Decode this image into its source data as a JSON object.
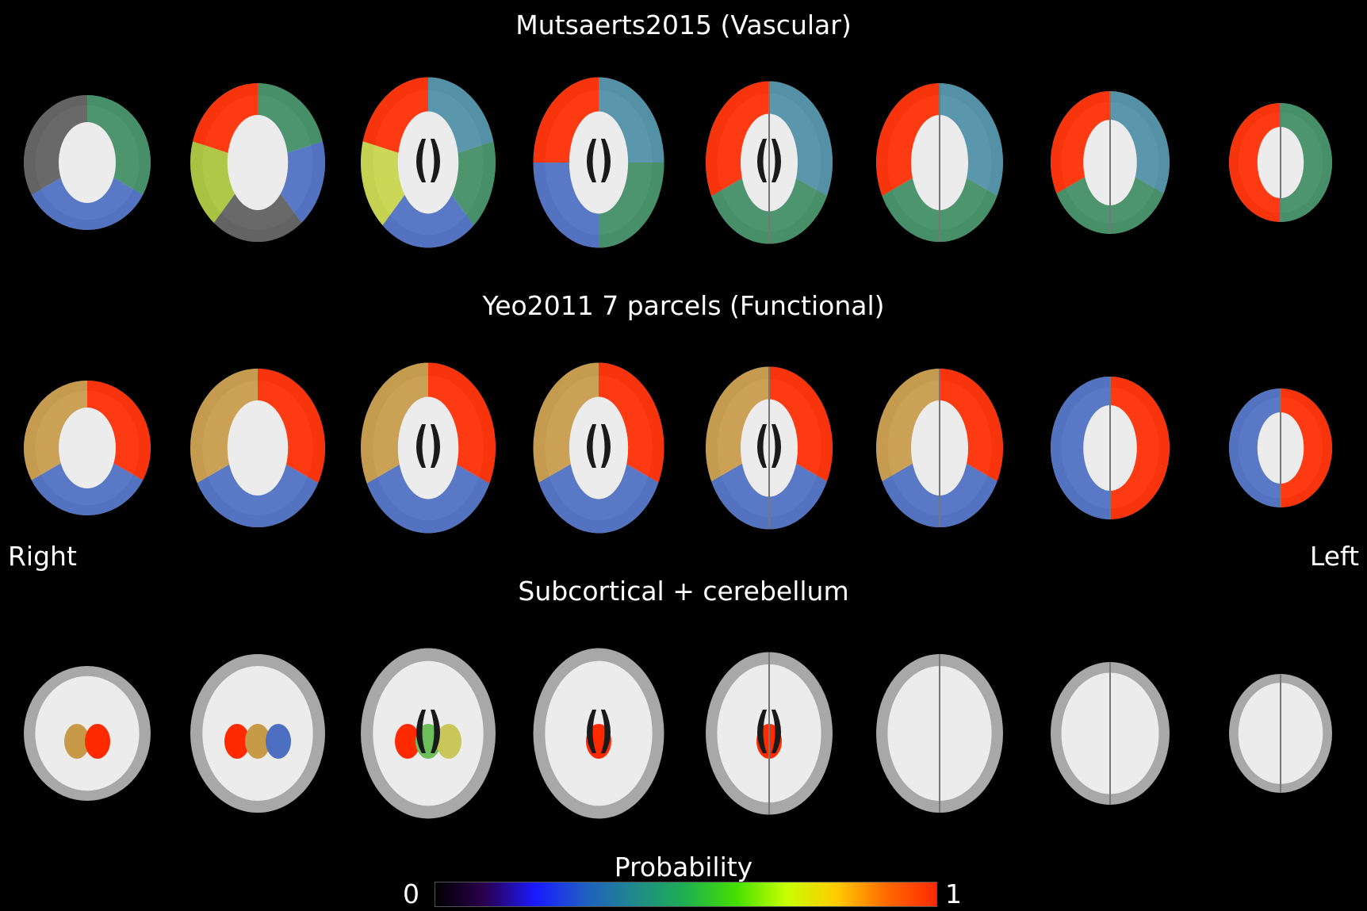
{
  "rows": [
    {
      "title": "Mutsaerts2015 (Vascular)",
      "slices": [
        {
          "label": "slice-1",
          "regions": [
            "#3e8d64",
            "#4c6fc2",
            "#5d5d5d"
          ]
        },
        {
          "label": "slice-2",
          "regions": [
            "#3e8d64",
            "#4c6fc2",
            "#5d5d5d",
            "#a9c43a",
            "#ff2a00"
          ]
        },
        {
          "label": "slice-3",
          "regions": [
            "#4d8ea6",
            "#3e8d64",
            "#4c6fc2",
            "#c8d64a",
            "#ff2a00"
          ]
        },
        {
          "label": "slice-4",
          "regions": [
            "#4d8ea6",
            "#3e8d64",
            "#4c6fc2",
            "#ff2a00"
          ]
        },
        {
          "label": "slice-5",
          "regions": [
            "#4d8ea6",
            "#3e8d64",
            "#ff2a00"
          ]
        },
        {
          "label": "slice-6",
          "regions": [
            "#4d8ea6",
            "#3e8d64",
            "#ff2a00"
          ]
        },
        {
          "label": "slice-7",
          "regions": [
            "#4d8ea6",
            "#3e8d64",
            "#ff2a00"
          ]
        },
        {
          "label": "slice-8",
          "regions": [
            "#3e8d64",
            "#ff2a00"
          ]
        }
      ]
    },
    {
      "title": "Yeo2011 7 parcels (Functional)",
      "slices": [
        {
          "label": "slice-1",
          "regions": [
            "#ff2a00",
            "#4c6fc2",
            "#c79a48"
          ]
        },
        {
          "label": "slice-2",
          "regions": [
            "#ff2a00",
            "#4c6fc2",
            "#c79a48"
          ]
        },
        {
          "label": "slice-3",
          "regions": [
            "#ff2a00",
            "#4c6fc2",
            "#c79a48"
          ]
        },
        {
          "label": "slice-4",
          "regions": [
            "#ff2a00",
            "#4c6fc2",
            "#c79a48"
          ]
        },
        {
          "label": "slice-5",
          "regions": [
            "#ff2a00",
            "#4c6fc2",
            "#c79a48"
          ]
        },
        {
          "label": "slice-6",
          "regions": [
            "#ff2a00",
            "#4c6fc2",
            "#c79a48"
          ]
        },
        {
          "label": "slice-7",
          "regions": [
            "#ff2a00",
            "#4c6fc2"
          ]
        },
        {
          "label": "slice-8",
          "regions": [
            "#ff2a00",
            "#4c6fc2"
          ]
        }
      ]
    },
    {
      "title": "Subcortical + cerebellum",
      "slices": [
        {
          "label": "slice-1",
          "regions": [
            "#c79a48",
            "#ff2a00"
          ]
        },
        {
          "label": "slice-2",
          "regions": [
            "#ff2a00",
            "#c79a48",
            "#4c6fc2"
          ]
        },
        {
          "label": "slice-3",
          "regions": [
            "#ff2a00",
            "#6cbf5a",
            "#c9c75a"
          ]
        },
        {
          "label": "slice-4",
          "regions": [
            "#ff2a00"
          ]
        },
        {
          "label": "slice-5",
          "regions": [
            "#ff2a00"
          ]
        },
        {
          "label": "slice-6",
          "regions": []
        },
        {
          "label": "slice-7",
          "regions": []
        },
        {
          "label": "slice-8",
          "regions": []
        }
      ]
    }
  ],
  "orientation": {
    "right_label": "Right",
    "left_label": "Left"
  },
  "colorbar": {
    "label": "Probability",
    "min_label": "0",
    "max_label": "1",
    "colormap": [
      "#000000",
      "#2a0050",
      "#1a1aff",
      "#1f5fc0",
      "#1f8a8a",
      "#1fb050",
      "#44e000",
      "#c8ff00",
      "#ffcc00",
      "#ff6a00",
      "#ff2a00"
    ]
  },
  "colors": {
    "background": "#000000",
    "brain": "#d8d8d8",
    "white_matter": "#ececec",
    "gray_matter": "#a8a8a8",
    "ventricle": "#1a1a1a"
  }
}
